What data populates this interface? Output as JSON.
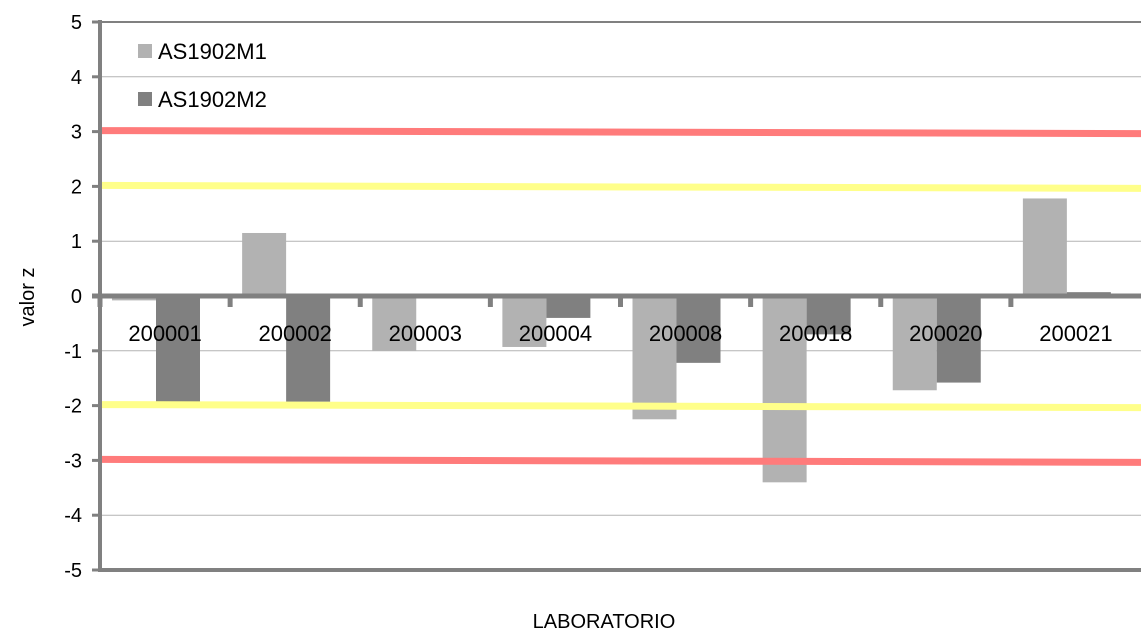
{
  "chart_data": {
    "type": "bar",
    "title": "",
    "xlabel": "LABORATORIO",
    "ylabel": "valor z",
    "ylim": [
      -5,
      5
    ],
    "yticks": [
      5,
      4,
      3,
      2,
      1,
      0,
      -1,
      -2,
      -3,
      -4,
      -5
    ],
    "grid": true,
    "legend_position": "top-left",
    "categories": [
      "200001",
      "200002",
      "200003",
      "200004",
      "200008",
      "200018",
      "200020",
      "200021"
    ],
    "series": [
      {
        "name": "AS1902M1",
        "color": "#b2b2b2",
        "values": [
          -0.08,
          1.15,
          -1.0,
          -0.93,
          -2.25,
          -3.4,
          -1.72,
          1.78
        ]
      },
      {
        "name": "AS1902M2",
        "color": "#808080",
        "values": [
          -1.95,
          -1.93,
          -0.03,
          -0.4,
          -1.22,
          -0.7,
          -1.58,
          0.07
        ]
      }
    ],
    "reference_lines": [
      {
        "value": 3,
        "color": "#ff7b7b"
      },
      {
        "value": 2,
        "color": "#ffff8a"
      },
      {
        "value": -2,
        "color": "#ffff8a"
      },
      {
        "value": -3,
        "color": "#ff7b7b"
      }
    ]
  }
}
